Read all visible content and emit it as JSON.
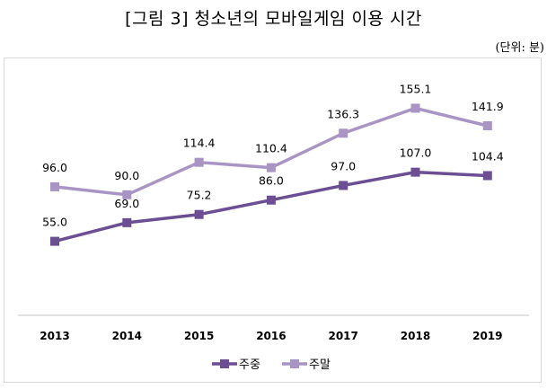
{
  "title": "[그림 3] 청소년의 모바일게임 이용 시간",
  "unit_label": "(단위: 분)",
  "chart_data": {
    "type": "line",
    "title": "[그림 3] 청소년의 모바일게임 이용 시간",
    "xlabel": "",
    "ylabel": "",
    "unit": "분",
    "ylim": [
      0,
      160
    ],
    "grid": false,
    "legend_position": "bottom",
    "categories": [
      "2013",
      "2014",
      "2015",
      "2016",
      "2017",
      "2018",
      "2019"
    ],
    "series": [
      {
        "name": "주중",
        "color": "#6b4f92",
        "values": [
          55.0,
          69.0,
          75.2,
          86.0,
          97.0,
          107.0,
          104.4
        ],
        "labels": [
          "55.0",
          "69.0",
          "75.2",
          "86.0",
          "97.0",
          "107.0",
          "104.4"
        ]
      },
      {
        "name": "주말",
        "color": "#a895c3",
        "values": [
          96.0,
          90.0,
          114.4,
          110.4,
          136.3,
          155.1,
          141.9
        ],
        "labels": [
          "96.0",
          "90.0",
          "114.4",
          "110.4",
          "136.3",
          "155.1",
          "141.9"
        ]
      }
    ]
  }
}
